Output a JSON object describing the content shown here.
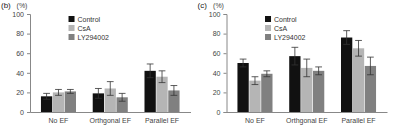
{
  "chart_data": [
    {
      "type": "bar",
      "title": "(b)",
      "y_label": "(%)",
      "categories": [
        "No EF",
        "Orthgonal EF",
        "Parallel EF"
      ],
      "series": [
        {
          "name": "Control",
          "color": "#111111",
          "values": [
            16,
            19,
            42
          ],
          "errors": [
            3,
            5,
            7
          ]
        },
        {
          "name": "CsA",
          "color": "#b5b5b5",
          "values": [
            20,
            24,
            36
          ],
          "errors": [
            3,
            7,
            6
          ]
        },
        {
          "name": "LY294002",
          "color": "#808080",
          "values": [
            21,
            15,
            22
          ],
          "errors": [
            2,
            4,
            5
          ]
        }
      ],
      "ylim": [
        0,
        100
      ],
      "yticks": [
        0,
        20,
        40,
        60,
        80,
        100
      ],
      "legend": "upper left"
    },
    {
      "type": "bar",
      "title": "(c)",
      "y_label": "(%)",
      "categories": [
        "No EF",
        "Orthgonal EF",
        "Parallel EF"
      ],
      "series": [
        {
          "name": "Control",
          "color": "#111111",
          "values": [
            50,
            57,
            76
          ],
          "errors": [
            4,
            9,
            7
          ]
        },
        {
          "name": "CsA",
          "color": "#b5b5b5",
          "values": [
            32,
            45,
            65
          ],
          "errors": [
            4,
            9,
            8
          ]
        },
        {
          "name": "LY294002",
          "color": "#808080",
          "values": [
            39,
            42,
            47
          ],
          "errors": [
            3,
            4,
            9
          ]
        }
      ],
      "ylim": [
        0,
        100
      ],
      "yticks": [
        0,
        20,
        40,
        60,
        80,
        100
      ],
      "legend": "upper left"
    }
  ]
}
